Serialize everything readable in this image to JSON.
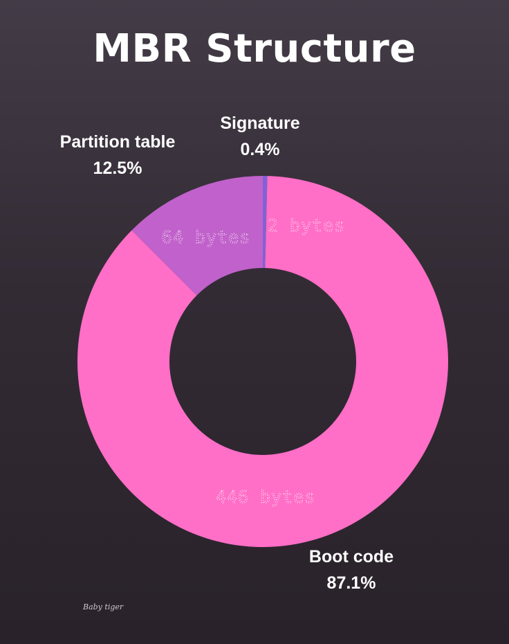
{
  "title": "MBR Structure",
  "signature": "Baby tiger",
  "colors": {
    "boot_code": "#ff6ec7",
    "partition_table": "#c161cb",
    "signature": "#8062d6",
    "background": "#332b34"
  },
  "chart_data": {
    "type": "pie",
    "donut": true,
    "title": "MBR Structure",
    "slices": [
      {
        "name": "Signature",
        "percent_label": "0.4%",
        "value_label": "2 bytes",
        "bytes": 2,
        "color": "#8062d6"
      },
      {
        "name": "Boot code",
        "percent_label": "87.1%",
        "value_label": "446 bytes",
        "bytes": 446,
        "color": "#ff6ec7"
      },
      {
        "name": "Partition table",
        "percent_label": "12.5%",
        "value_label": "64 bytes",
        "bytes": 64,
        "color": "#c161cb"
      }
    ],
    "legend": "none"
  }
}
